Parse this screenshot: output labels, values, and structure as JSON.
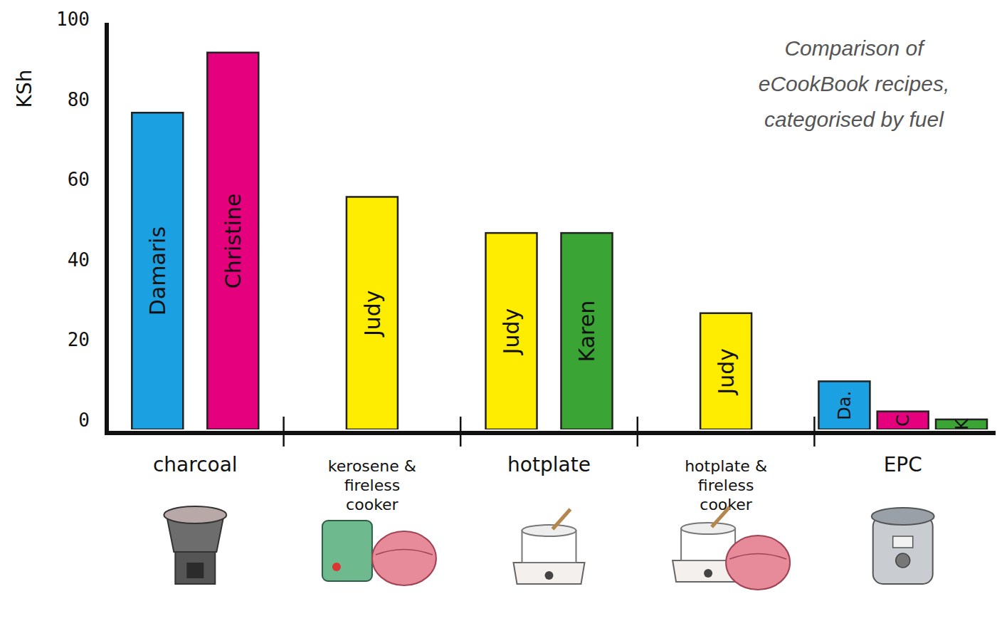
{
  "chart_data": {
    "type": "bar",
    "title": "Comparison of eCookBook recipes, categorised by fuel",
    "y_label": "KSh",
    "ylim": [
      0,
      100
    ],
    "yticks": [
      0,
      20,
      40,
      60,
      80,
      100
    ],
    "grid": false,
    "groups": [
      {
        "name": "charcoal",
        "bars": [
          {
            "label": "Damaris",
            "value": 79,
            "color": "#1ba1e2"
          },
          {
            "label": "Christine",
            "value": 94,
            "color": "#e5007d"
          }
        ]
      },
      {
        "name": "kerosene & fireless cooker",
        "bars": [
          {
            "label": "Judy",
            "value": 58,
            "color": "#ffed00"
          }
        ]
      },
      {
        "name": "hotplate",
        "bars": [
          {
            "label": "Judy",
            "value": 49,
            "color": "#ffed00"
          },
          {
            "label": "Karen",
            "value": 49,
            "color": "#3aa435"
          }
        ]
      },
      {
        "name": "hotplate & fireless cooker",
        "bars": [
          {
            "label": "Judy",
            "value": 29,
            "color": "#ffed00"
          }
        ]
      },
      {
        "name": "EPC",
        "bars": [
          {
            "label": "Da.",
            "value": 12,
            "color": "#1ba1e2"
          },
          {
            "label": "C",
            "value": 4.5,
            "color": "#e5007d"
          },
          {
            "label": "K",
            "value": 2.5,
            "color": "#3aa435"
          }
        ]
      }
    ]
  }
}
